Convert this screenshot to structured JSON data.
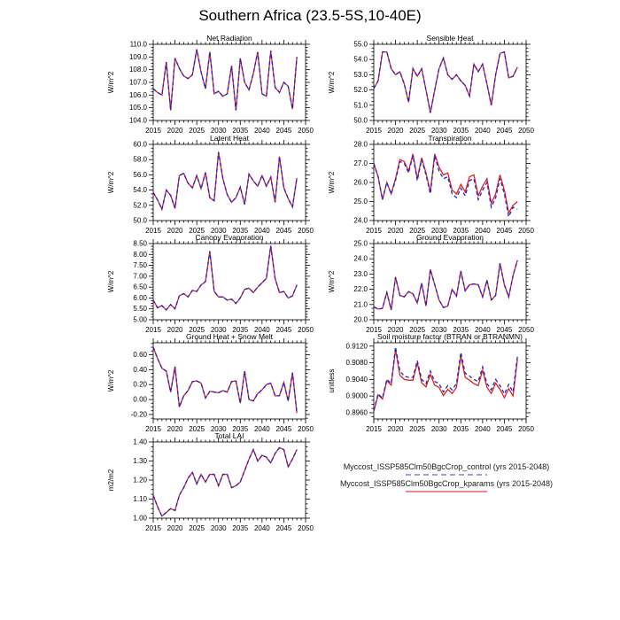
{
  "title": "Southern Africa (23.5-5S,10-40E)",
  "legend": {
    "entries": [
      {
        "label": "Myccost_ISSP585Clm50BgcCrop_control (yrs 2015-2048)",
        "color": "#9f9fe8",
        "style": "dashed"
      },
      {
        "label": "Myccost_ISSP585Clm50BgcCrop_kparams (yrs 2015-2048)",
        "color": "#f08c8c",
        "style": "solid"
      }
    ]
  },
  "colors": {
    "control_line": "#2222cc",
    "kparams_line": "#dd2222",
    "axis": "#000000"
  },
  "chart_data": [
    {
      "id": "net-radiation",
      "type": "line",
      "title": "Net Radiation",
      "ylabel": "W/m^2",
      "xlim": [
        2015,
        2050
      ],
      "xtick_step": 5,
      "x_range": [
        2015,
        2048
      ],
      "ylim": [
        104.0,
        110.0
      ],
      "ystep": 1.0,
      "ydec": 1,
      "series": [
        {
          "name": "control",
          "values": [
            106.5,
            106.2,
            106.0,
            108.6,
            104.8,
            108.9,
            108.1,
            107.5,
            107.3,
            107.6,
            109.6,
            107.8,
            106.5,
            109.4,
            106.1,
            106.3,
            105.9,
            106.1,
            108.3,
            104.8,
            108.9,
            107.0,
            106.4,
            107.7,
            109.4,
            106.1,
            105.9,
            109.5,
            106.6,
            106.2,
            107.0,
            106.7,
            104.9,
            109.0
          ]
        },
        {
          "name": "kparams",
          "values": [
            106.5,
            106.2,
            106.0,
            108.6,
            104.8,
            108.9,
            108.1,
            107.5,
            107.3,
            107.6,
            109.6,
            107.8,
            106.5,
            109.4,
            106.1,
            106.3,
            105.9,
            106.1,
            108.3,
            104.8,
            108.9,
            107.0,
            106.4,
            107.7,
            109.4,
            106.1,
            105.9,
            109.5,
            106.6,
            106.2,
            107.0,
            106.7,
            104.9,
            109.0
          ]
        }
      ]
    },
    {
      "id": "sensible-heat",
      "type": "line",
      "title": "Sensible Heat",
      "ylabel": "W/m^2",
      "xlim": [
        2015,
        2050
      ],
      "xtick_step": 5,
      "x_range": [
        2015,
        2048
      ],
      "ylim": [
        50.0,
        55.0
      ],
      "ystep": 1.0,
      "ydec": 1,
      "series": [
        {
          "name": "control",
          "values": [
            52.1,
            52.6,
            54.5,
            54.5,
            53.4,
            53.0,
            53.2,
            52.4,
            51.2,
            53.4,
            52.9,
            53.4,
            52.0,
            50.5,
            52.0,
            53.4,
            54.1,
            53.0,
            52.7,
            53.0,
            52.6,
            52.3,
            51.6,
            53.7,
            53.2,
            53.7,
            52.4,
            51.0,
            53.0,
            54.4,
            54.5,
            52.8,
            52.9,
            53.5
          ]
        },
        {
          "name": "kparams",
          "values": [
            52.1,
            52.6,
            54.5,
            54.5,
            53.4,
            53.0,
            53.2,
            52.4,
            51.2,
            53.4,
            52.9,
            53.4,
            52.0,
            50.5,
            52.0,
            53.4,
            54.1,
            53.0,
            52.7,
            53.0,
            52.6,
            52.3,
            51.6,
            53.7,
            53.2,
            53.7,
            52.4,
            51.0,
            53.0,
            54.4,
            54.5,
            52.8,
            52.9,
            53.5
          ]
        }
      ]
    },
    {
      "id": "latent-heat",
      "type": "line",
      "title": "Latent Heat",
      "ylabel": "W/m^2",
      "xlim": [
        2015,
        2050
      ],
      "xtick_step": 5,
      "x_range": [
        2015,
        2048
      ],
      "ylim": [
        50.0,
        60.0
      ],
      "ystep": 2.0,
      "ydec": 1,
      "series": [
        {
          "name": "control",
          "values": [
            53.7,
            52.7,
            51.5,
            54.0,
            53.3,
            51.6,
            55.9,
            56.2,
            54.9,
            54.3,
            55.9,
            54.2,
            56.3,
            53.0,
            52.6,
            59.0,
            55.5,
            53.4,
            52.4,
            53.0,
            54.4,
            52.1,
            56.1,
            55.2,
            54.5,
            55.9,
            54.5,
            55.7,
            52.4,
            58.4,
            54.3,
            52.9,
            51.8,
            55.6
          ]
        },
        {
          "name": "kparams",
          "values": [
            53.7,
            52.7,
            51.5,
            54.0,
            53.3,
            51.6,
            55.9,
            56.2,
            54.9,
            54.3,
            55.9,
            54.2,
            56.3,
            53.0,
            52.6,
            59.0,
            55.5,
            53.4,
            52.4,
            53.0,
            54.4,
            52.1,
            56.1,
            55.2,
            54.5,
            55.9,
            54.5,
            55.7,
            52.4,
            58.4,
            54.3,
            52.9,
            51.8,
            55.6
          ]
        }
      ]
    },
    {
      "id": "transpiration",
      "type": "line",
      "title": "Transpiration",
      "ylabel": "W/m^2",
      "xlim": [
        2015,
        2050
      ],
      "xtick_step": 5,
      "x_range": [
        2015,
        2048
      ],
      "ylim": [
        24.0,
        28.0
      ],
      "ystep": 1.0,
      "ydec": 1,
      "series": [
        {
          "name": "control",
          "values": [
            27.0,
            26.3,
            25.1,
            26.0,
            25.4,
            26.1,
            27.1,
            27.0,
            26.5,
            27.4,
            26.1,
            27.2,
            26.4,
            25.4,
            27.4,
            26.6,
            26.2,
            26.3,
            25.4,
            25.2,
            25.7,
            25.3,
            26.1,
            26.2,
            25.1,
            25.6,
            26.0,
            24.7,
            25.2,
            26.2,
            25.4,
            24.2,
            24.7,
            24.6
          ]
        },
        {
          "name": "kparams",
          "values": [
            27.0,
            26.3,
            25.1,
            26.0,
            25.4,
            26.2,
            27.2,
            27.1,
            26.6,
            27.5,
            26.2,
            27.3,
            26.5,
            25.5,
            27.5,
            26.8,
            26.4,
            26.5,
            25.6,
            25.4,
            25.9,
            25.5,
            26.3,
            26.4,
            25.3,
            25.8,
            26.2,
            24.9,
            25.4,
            26.4,
            25.6,
            24.4,
            24.8,
            25.0
          ]
        }
      ]
    },
    {
      "id": "canopy-evaporation",
      "type": "line",
      "title": "Canopy Evaporation",
      "ylabel": "W/m^2",
      "xlim": [
        2015,
        2050
      ],
      "xtick_step": 5,
      "x_range": [
        2015,
        2048
      ],
      "ylim": [
        5.0,
        8.5
      ],
      "ystep": 0.5,
      "ydec": 2,
      "series": [
        {
          "name": "control",
          "values": [
            5.9,
            5.55,
            5.65,
            5.45,
            5.7,
            5.5,
            6.1,
            6.2,
            6.05,
            6.35,
            6.3,
            6.6,
            6.75,
            8.15,
            6.3,
            6.05,
            6.05,
            5.9,
            5.95,
            5.75,
            6.0,
            6.4,
            6.45,
            6.25,
            6.5,
            6.7,
            6.9,
            8.4,
            6.9,
            6.25,
            6.3,
            6.0,
            6.1,
            6.6
          ]
        },
        {
          "name": "kparams",
          "values": [
            5.9,
            5.55,
            5.65,
            5.45,
            5.7,
            5.5,
            6.1,
            6.2,
            6.05,
            6.35,
            6.3,
            6.6,
            6.75,
            8.15,
            6.3,
            6.05,
            6.05,
            5.9,
            5.95,
            5.75,
            6.0,
            6.4,
            6.45,
            6.25,
            6.5,
            6.7,
            6.9,
            8.4,
            6.9,
            6.25,
            6.3,
            6.0,
            6.1,
            6.6
          ]
        }
      ]
    },
    {
      "id": "ground-evaporation",
      "type": "line",
      "title": "Ground Evaporation",
      "ylabel": "W/m^2",
      "xlim": [
        2015,
        2050
      ],
      "xtick_step": 5,
      "x_range": [
        2015,
        2048
      ],
      "ylim": [
        20.0,
        25.0
      ],
      "ystep": 1.0,
      "ydec": 1,
      "series": [
        {
          "name": "control",
          "values": [
            20.85,
            20.7,
            20.75,
            21.8,
            20.65,
            22.8,
            21.6,
            21.5,
            21.85,
            21.7,
            21.1,
            22.4,
            20.9,
            23.3,
            22.3,
            21.3,
            20.8,
            20.9,
            22.0,
            21.55,
            23.2,
            21.9,
            22.3,
            22.35,
            22.3,
            21.5,
            22.6,
            21.3,
            21.6,
            23.7,
            22.3,
            21.5,
            22.9,
            23.9
          ]
        },
        {
          "name": "kparams",
          "values": [
            20.85,
            20.7,
            20.75,
            21.8,
            20.65,
            22.8,
            21.6,
            21.5,
            21.85,
            21.7,
            21.1,
            22.4,
            20.9,
            23.3,
            22.3,
            21.3,
            20.8,
            20.9,
            22.0,
            21.55,
            23.2,
            21.9,
            22.3,
            22.35,
            22.3,
            21.5,
            22.6,
            21.3,
            21.6,
            23.7,
            22.3,
            21.5,
            22.9,
            23.9
          ]
        }
      ]
    },
    {
      "id": "ground-heat-snow-melt",
      "type": "line",
      "title": "Ground Heat + Snow Melt",
      "ylabel": "W/m^2",
      "xlim": [
        2015,
        2050
      ],
      "xtick_step": 5,
      "x_range": [
        2015,
        2048
      ],
      "ylim": [
        -0.26,
        0.76
      ],
      "ystep": 0.2,
      "ydec": 2,
      "series": [
        {
          "name": "control",
          "values": [
            0.7,
            0.55,
            0.42,
            0.38,
            0.1,
            0.44,
            -0.1,
            0.05,
            0.12,
            0.24,
            0.25,
            0.22,
            0.02,
            0.11,
            0.1,
            0.09,
            0.12,
            0.1,
            0.24,
            0.25,
            -0.05,
            0.38,
            0.0,
            -0.02,
            0.08,
            0.13,
            0.2,
            0.22,
            0.05,
            0.05,
            0.23,
            -0.02,
            0.36,
            -0.18
          ]
        },
        {
          "name": "kparams",
          "values": [
            0.7,
            0.55,
            0.42,
            0.38,
            0.1,
            0.44,
            -0.1,
            0.05,
            0.12,
            0.24,
            0.25,
            0.22,
            0.02,
            0.11,
            0.1,
            0.09,
            0.12,
            0.1,
            0.24,
            0.25,
            -0.05,
            0.38,
            0.0,
            -0.02,
            0.08,
            0.13,
            0.2,
            0.22,
            0.05,
            0.05,
            0.23,
            -0.02,
            0.36,
            -0.18
          ]
        }
      ]
    },
    {
      "id": "soil-moisture-factor",
      "type": "line",
      "title": "Soil moisture factor (BTRAN or BTRANMN)",
      "ylabel": "unitless",
      "xlim": [
        2015,
        2050
      ],
      "xtick_step": 5,
      "x_range": [
        2015,
        2048
      ],
      "ylim": [
        0.8945,
        0.9128
      ],
      "ystep": 0.004,
      "ydec": 4,
      "series": [
        {
          "name": "control",
          "values": [
            0.8965,
            0.9005,
            0.8995,
            0.904,
            0.903,
            0.9118,
            0.906,
            0.9048,
            0.9045,
            0.9045,
            0.9085,
            0.904,
            0.903,
            0.906,
            0.9035,
            0.903,
            0.901,
            0.9025,
            0.9015,
            0.903,
            0.9105,
            0.9055,
            0.9048,
            0.904,
            0.9035,
            0.907,
            0.903,
            0.9015,
            0.904,
            0.9025,
            0.9005,
            0.9028,
            0.901,
            0.9095
          ]
        },
        {
          "name": "kparams",
          "values": [
            0.8963,
            0.9003,
            0.8993,
            0.9037,
            0.9026,
            0.9112,
            0.905,
            0.904,
            0.9038,
            0.9038,
            0.908,
            0.9032,
            0.9022,
            0.9052,
            0.9026,
            0.9021,
            0.9001,
            0.9016,
            0.9006,
            0.9021,
            0.9096,
            0.9045,
            0.9038,
            0.903,
            0.9025,
            0.9062,
            0.9021,
            0.9006,
            0.9031,
            0.9016,
            0.8996,
            0.9018,
            0.9,
            0.9088
          ]
        }
      ]
    },
    {
      "id": "total-lai",
      "type": "line",
      "title": "Total LAI",
      "ylabel": "m2/m2",
      "xlim": [
        2015,
        2050
      ],
      "xtick_step": 5,
      "x_range": [
        2015,
        2048
      ],
      "ylim": [
        1.0,
        1.4
      ],
      "ystep": 0.1,
      "ydec": 2,
      "series": [
        {
          "name": "control",
          "values": [
            1.12,
            1.06,
            1.01,
            1.03,
            1.05,
            1.04,
            1.12,
            1.16,
            1.21,
            1.24,
            1.18,
            1.23,
            1.19,
            1.23,
            1.23,
            1.17,
            1.23,
            1.23,
            1.16,
            1.17,
            1.19,
            1.25,
            1.31,
            1.36,
            1.3,
            1.33,
            1.32,
            1.29,
            1.34,
            1.37,
            1.36,
            1.27,
            1.31,
            1.36
          ]
        },
        {
          "name": "kparams",
          "values": [
            1.12,
            1.06,
            1.01,
            1.03,
            1.05,
            1.04,
            1.12,
            1.16,
            1.21,
            1.24,
            1.18,
            1.23,
            1.19,
            1.23,
            1.23,
            1.17,
            1.23,
            1.23,
            1.16,
            1.17,
            1.19,
            1.25,
            1.31,
            1.36,
            1.3,
            1.33,
            1.32,
            1.29,
            1.34,
            1.37,
            1.36,
            1.27,
            1.31,
            1.36
          ]
        }
      ]
    }
  ]
}
